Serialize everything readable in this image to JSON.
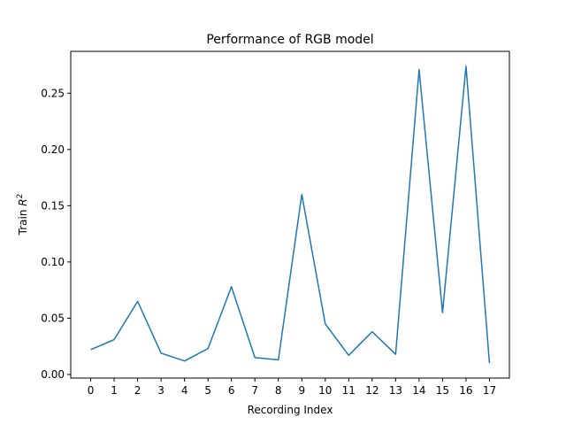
{
  "chart_data": {
    "type": "line",
    "title": "Performance of RGB model",
    "xlabel": "Recording Index",
    "ylabel_prefix": "Train ",
    "ylabel_var": "R",
    "ylabel_sup": "2",
    "x": [
      0,
      1,
      2,
      3,
      4,
      5,
      6,
      7,
      8,
      9,
      10,
      11,
      12,
      13,
      14,
      15,
      16,
      17
    ],
    "x_tick_labels": [
      "0",
      "1",
      "2",
      "3",
      "4",
      "5",
      "6",
      "7",
      "8",
      "9",
      "10",
      "11",
      "12",
      "13",
      "14",
      "15",
      "16",
      "17"
    ],
    "series": [
      {
        "values": [
          0.022,
          0.031,
          0.065,
          0.019,
          0.012,
          0.023,
          0.078,
          0.015,
          0.013,
          0.16,
          0.045,
          0.017,
          0.038,
          0.018,
          0.271,
          0.055,
          0.274,
          0.01
        ],
        "color": "#1f77b4"
      }
    ],
    "y_ticks": [
      0.0,
      0.05,
      0.1,
      0.15,
      0.2,
      0.25
    ],
    "y_tick_labels": [
      "0.00",
      "0.05",
      "0.10",
      "0.15",
      "0.20",
      "0.25"
    ],
    "xlim": [
      -0.85,
      17.85
    ],
    "ylim": [
      -0.0032,
      0.2872
    ],
    "grid": false
  }
}
